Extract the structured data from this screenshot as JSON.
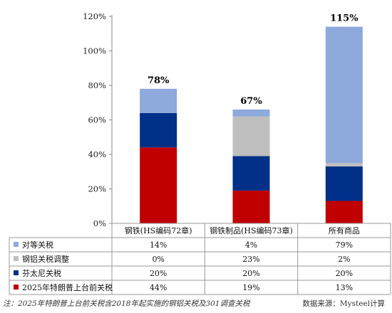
{
  "chart_data": {
    "type": "bar",
    "stacked": true,
    "categories": [
      "钢铁(HS编码72章)",
      "钢铁制品(HS编码73章)",
      "所有商品"
    ],
    "series": [
      {
        "name": "2025年特朗普上台前关税",
        "values": [
          44,
          19,
          13
        ],
        "labels": [
          "44%",
          "19%",
          "13%"
        ],
        "color": "#c00000"
      },
      {
        "name": "芬太尼关税",
        "values": [
          20,
          20,
          20
        ],
        "labels": [
          "20%",
          "20%",
          "20%"
        ],
        "color": "#003087"
      },
      {
        "name": "钢铝关税调整",
        "values": [
          0,
          23,
          2
        ],
        "labels": [
          "0%",
          "23%",
          "2%"
        ],
        "color": "#bfbfbf"
      },
      {
        "name": "对等关税",
        "values": [
          14,
          4,
          79
        ],
        "labels": [
          "14%",
          "4%",
          "79%"
        ],
        "color": "#8ea9db"
      }
    ],
    "totals": [
      "78%",
      "67%",
      "115%"
    ],
    "ylim": [
      0,
      120
    ],
    "yticks": [
      "0%",
      "20%",
      "40%",
      "60%",
      "80%",
      "100%",
      "120%"
    ],
    "legend": "table-below",
    "grid": false
  },
  "footer": {
    "note": "注：2025年特朗普上台前关税含2018年起实施的钢铝关税及301调查关税",
    "source": "数据来源：Mysteel计算"
  }
}
